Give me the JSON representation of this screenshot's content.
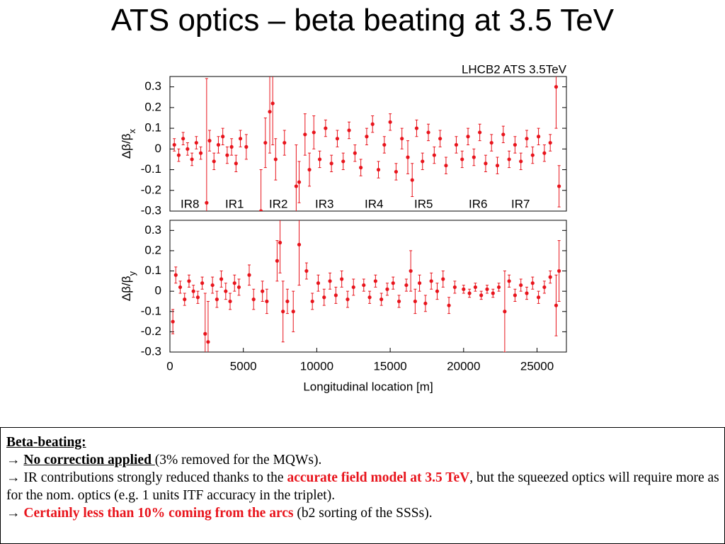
{
  "title": "ATS optics – beta beating at 3.5 TeV",
  "chart_data": [
    {
      "type": "scatter",
      "annotation": "LHCB2 ATS 3.5TeV",
      "labels": [
        "IR8",
        "IR1",
        "IR2",
        "IR3",
        "IR4",
        "IR5",
        "IR6",
        "IR7"
      ],
      "ylabel": "Δβ/β",
      "ylabel_sub": "x",
      "xlim": [
        0,
        27000
      ],
      "ylim": [
        -0.3,
        0.35
      ],
      "yticks": [
        -0.3,
        -0.2,
        -0.1,
        0,
        0.1,
        0.2,
        0.3
      ],
      "series": [
        {
          "color": "#e8141c",
          "x": [
            300,
            600,
            900,
            1200,
            1500,
            1800,
            2100,
            2500,
            2700,
            3000,
            3300,
            3600,
            3900,
            4200,
            4500,
            4800,
            5200,
            6200,
            6500,
            6800,
            7000,
            7200,
            7800,
            8600,
            8800,
            9200,
            9500,
            9800,
            10200,
            10600,
            11000,
            11400,
            11800,
            12200,
            12600,
            13000,
            13400,
            13800,
            14200,
            14600,
            15000,
            15400,
            15800,
            16200,
            16500,
            16800,
            17200,
            17600,
            18000,
            18400,
            18800,
            19500,
            19900,
            20300,
            20700,
            21100,
            21500,
            21900,
            22300,
            22700,
            23100,
            23500,
            23900,
            24300,
            24700,
            25100,
            25500,
            25900,
            26300,
            26500
          ],
          "values": [
            0.02,
            -0.03,
            0.05,
            0,
            -0.05,
            0.03,
            -0.02,
            -0.26,
            0.04,
            -0.06,
            0.02,
            0.06,
            -0.03,
            0.01,
            -0.07,
            0.05,
            0.01,
            -0.3,
            0.03,
            0.18,
            0.22,
            -0.05,
            0.03,
            -0.18,
            -0.16,
            0.07,
            -0.1,
            0.08,
            -0.05,
            0.1,
            -0.07,
            0.05,
            -0.06,
            0.09,
            -0.02,
            -0.09,
            0.06,
            0.12,
            -0.1,
            0.02,
            0.13,
            -0.11,
            0.05,
            -0.04,
            -0.15,
            0.1,
            -0.06,
            0.08,
            -0.03,
            0.05,
            -0.08,
            0.02,
            -0.05,
            0.06,
            -0.04,
            0.08,
            -0.07,
            0.03,
            -0.08,
            0.07,
            -0.05,
            0.02,
            -0.06,
            0.05,
            -0.03,
            0.06,
            -0.02,
            0.03,
            0.3,
            -0.18
          ],
          "errors": [
            0.03,
            0.03,
            0.03,
            0.03,
            0.03,
            0.03,
            0.03,
            0.6,
            0.05,
            0.04,
            0.04,
            0.04,
            0.04,
            0.04,
            0.04,
            0.04,
            0.06,
            0.2,
            0.12,
            0.2,
            0.2,
            0.1,
            0.06,
            0.2,
            0.1,
            0.1,
            0.08,
            0.08,
            0.04,
            0.04,
            0.04,
            0.04,
            0.04,
            0.04,
            0.04,
            0.04,
            0.04,
            0.04,
            0.04,
            0.04,
            0.04,
            0.04,
            0.05,
            0.08,
            0.08,
            0.04,
            0.04,
            0.04,
            0.04,
            0.04,
            0.04,
            0.04,
            0.04,
            0.04,
            0.04,
            0.04,
            0.04,
            0.04,
            0.04,
            0.04,
            0.04,
            0.04,
            0.04,
            0.04,
            0.04,
            0.04,
            0.04,
            0.04,
            0.2,
            0.1
          ]
        }
      ]
    },
    {
      "type": "scatter",
      "ylabel": "Δβ/β",
      "ylabel_sub": "y",
      "xlabel": "Longitudinal location [m]",
      "xlim": [
        0,
        27000
      ],
      "ylim": [
        -0.3,
        0.35
      ],
      "xticks": [
        0,
        5000,
        10000,
        15000,
        20000,
        25000
      ],
      "yticks": [
        -0.3,
        -0.2,
        -0.1,
        0,
        0.1,
        0.2,
        0.3
      ],
      "series": [
        {
          "color": "#e8141c",
          "x": [
            200,
            400,
            700,
            1000,
            1300,
            1600,
            1900,
            2200,
            2400,
            2600,
            2900,
            3200,
            3500,
            3800,
            4100,
            4400,
            4700,
            5400,
            5700,
            6300,
            6600,
            7300,
            7500,
            7700,
            8000,
            8400,
            8800,
            9300,
            9700,
            10100,
            10500,
            10900,
            11300,
            11700,
            12100,
            12500,
            13200,
            13600,
            14000,
            14400,
            14800,
            15200,
            15600,
            16100,
            16400,
            16700,
            17000,
            17400,
            17800,
            18200,
            18600,
            19000,
            19400,
            20000,
            20400,
            20800,
            21200,
            21600,
            22000,
            22400,
            22800,
            23100,
            23500,
            23900,
            24300,
            24700,
            25100,
            25500,
            25900,
            26300,
            26500
          ],
          "values": [
            -0.15,
            0.08,
            0.02,
            -0.04,
            0.05,
            0,
            -0.03,
            0.04,
            -0.21,
            -0.25,
            0.03,
            -0.04,
            0.06,
            0,
            -0.05,
            0.04,
            0.02,
            0.08,
            -0.04,
            0,
            -0.05,
            0.15,
            0.24,
            -0.1,
            -0.05,
            -0.1,
            0.23,
            0.1,
            -0.05,
            0.04,
            -0.03,
            0.05,
            -0.02,
            0.06,
            -0.04,
            0.02,
            0.03,
            -0.03,
            0.05,
            -0.04,
            0.01,
            0.04,
            -0.05,
            0.03,
            0.1,
            -0.05,
            0.04,
            -0.06,
            0.05,
            0,
            0.06,
            -0.07,
            0.02,
            0.01,
            -0.01,
            0.02,
            -0.02,
            0.01,
            -0.01,
            0.02,
            -0.1,
            0.05,
            -0.02,
            0.03,
            -0.01,
            0.04,
            -0.03,
            0.02,
            0.07,
            -0.07,
            0.1
          ],
          "errors": [
            0.06,
            0.04,
            0.03,
            0.03,
            0.03,
            0.03,
            0.03,
            0.03,
            0.2,
            0.2,
            0.04,
            0.04,
            0.04,
            0.04,
            0.04,
            0.04,
            0.04,
            0.05,
            0.05,
            0.05,
            0.06,
            0.1,
            0.15,
            0.15,
            0.06,
            0.1,
            0.2,
            0.04,
            0.04,
            0.04,
            0.04,
            0.04,
            0.04,
            0.04,
            0.04,
            0.04,
            0.03,
            0.03,
            0.03,
            0.03,
            0.03,
            0.03,
            0.03,
            0.03,
            0.1,
            0.06,
            0.04,
            0.04,
            0.04,
            0.04,
            0.04,
            0.04,
            0.03,
            0.02,
            0.02,
            0.02,
            0.02,
            0.02,
            0.02,
            0.02,
            0.2,
            0.03,
            0.03,
            0.03,
            0.03,
            0.03,
            0.03,
            0.03,
            0.03,
            0.15,
            0.15
          ]
        }
      ]
    }
  ],
  "textbox": {
    "heading": "Beta-beating:",
    "lines": [
      [
        "→ ",
        "No correction applied ",
        "(3%  removed for the MQWs)."
      ],
      [
        "→ IR contributions strongly reduced thanks to the ",
        "accurate field model at 3.5 TeV",
        ", but the squeezed optics will require more as for the nom. optics (e.g. 1 units ITF accuracy in the triplet)."
      ],
      [
        "→ ",
        "Certainly less than 10% coming from the arcs",
        " (b2 sorting of the SSSs)."
      ]
    ]
  }
}
